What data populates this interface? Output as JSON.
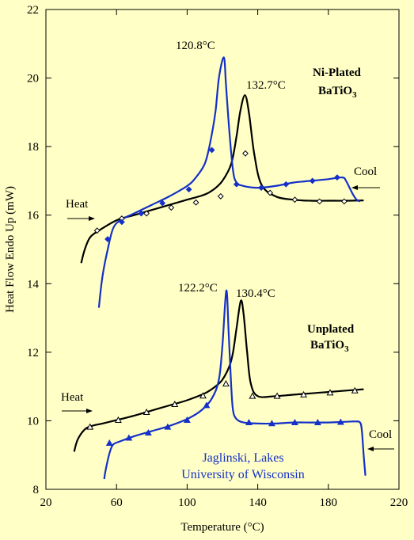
{
  "chart_data": {
    "type": "line",
    "xlabel": "Temperature (°C)",
    "ylabel": "Heat Flow Endo Up (mW)",
    "xlim": [
      20,
      220
    ],
    "ylim": [
      8,
      22
    ],
    "x_ticks": [
      20,
      60,
      100,
      140,
      180,
      220
    ],
    "y_ticks": [
      8,
      10,
      12,
      14,
      16,
      18,
      20,
      22
    ],
    "grid": false,
    "colors": {
      "heating": "#000000",
      "cooling": "#1530c8",
      "background": "#ffffc6"
    },
    "series": [
      {
        "panel": "Ni-Plated BaTiO3",
        "direction": "heat",
        "color": "#000000",
        "marker": "open-diamond",
        "x": [
          40,
          42,
          45,
          50,
          60,
          70,
          80,
          90,
          100,
          110,
          115,
          120,
          125,
          128,
          130,
          132.7,
          135,
          138,
          142,
          150,
          160,
          170,
          180,
          190,
          200
        ],
        "y": [
          14.6,
          15.0,
          15.35,
          15.55,
          15.85,
          16.0,
          16.15,
          16.3,
          16.45,
          16.6,
          16.75,
          17.0,
          17.5,
          18.3,
          19.0,
          19.5,
          19.0,
          17.8,
          16.9,
          16.55,
          16.45,
          16.42,
          16.42,
          16.42,
          16.43
        ],
        "markers_x": [
          49,
          63,
          77,
          91,
          105,
          119,
          133,
          147,
          161,
          175,
          189
        ],
        "markers_y": [
          15.55,
          15.9,
          16.05,
          16.22,
          16.37,
          16.55,
          17.8,
          16.65,
          16.45,
          16.4,
          16.4
        ]
      },
      {
        "panel": "Ni-Plated BaTiO3",
        "direction": "cool",
        "color": "#1530c8",
        "marker": "filled-diamond",
        "x": [
          50,
          52,
          55,
          58,
          62,
          70,
          80,
          90,
          100,
          105,
          110,
          113,
          116,
          118,
          120.8,
          122,
          124,
          126,
          128,
          132,
          140,
          150,
          160,
          170,
          180,
          188,
          190,
          192,
          194,
          196,
          198
        ],
        "y": [
          13.3,
          14.2,
          15.0,
          15.6,
          15.85,
          16.05,
          16.3,
          16.55,
          16.85,
          17.1,
          17.5,
          18.1,
          19.0,
          20.0,
          20.6,
          19.8,
          18.4,
          17.3,
          16.95,
          16.85,
          16.8,
          16.85,
          16.95,
          17.0,
          17.05,
          17.1,
          17.0,
          16.8,
          16.6,
          16.45,
          16.4
        ],
        "markers_x": [
          55,
          63,
          74,
          86,
          101,
          114,
          128,
          142,
          156,
          171,
          185
        ],
        "markers_y": [
          15.3,
          15.8,
          16.05,
          16.35,
          16.75,
          17.9,
          16.9,
          16.8,
          16.9,
          17.0,
          17.1
        ]
      },
      {
        "panel": "Unplated BaTiO3",
        "direction": "heat",
        "color": "#000000",
        "marker": "open-triangle",
        "x": [
          36,
          38,
          42,
          46,
          52,
          60,
          70,
          80,
          90,
          100,
          110,
          116,
          120,
          124,
          126,
          128,
          130.4,
          132,
          134,
          136,
          140,
          150,
          160,
          170,
          180,
          190,
          200
        ],
        "y": [
          9.1,
          9.45,
          9.75,
          9.85,
          9.92,
          10.02,
          10.15,
          10.3,
          10.45,
          10.6,
          10.8,
          11.0,
          11.2,
          11.6,
          12.0,
          12.7,
          13.5,
          13.1,
          12.0,
          11.1,
          10.72,
          10.72,
          10.76,
          10.8,
          10.84,
          10.88,
          10.92
        ],
        "markers_x": [
          45,
          61,
          77,
          93,
          109,
          122,
          137,
          151,
          166,
          181,
          195
        ],
        "markers_y": [
          9.82,
          10.02,
          10.25,
          10.48,
          10.73,
          11.08,
          10.72,
          10.72,
          10.76,
          10.82,
          10.88
        ]
      },
      {
        "panel": "Unplated BaTiO3",
        "direction": "cool",
        "color": "#1530c8",
        "marker": "filled-triangle",
        "x": [
          53,
          54,
          56,
          58,
          62,
          70,
          80,
          90,
          100,
          108,
          114,
          118,
          120,
          122.2,
          123.5,
          125,
          126,
          128,
          132,
          140,
          150,
          160,
          170,
          180,
          190,
          195,
          198,
          199,
          200,
          201
        ],
        "y": [
          8.3,
          8.6,
          9.05,
          9.3,
          9.4,
          9.55,
          9.7,
          9.85,
          10.05,
          10.3,
          10.65,
          11.2,
          12.2,
          13.8,
          12.6,
          11.0,
          10.3,
          10.05,
          9.95,
          9.92,
          9.92,
          9.95,
          9.95,
          9.95,
          9.97,
          9.98,
          9.95,
          9.7,
          9.0,
          8.4
        ],
        "markers_x": [
          56,
          67,
          78,
          89,
          100,
          111,
          135,
          148,
          161,
          174,
          187
        ],
        "markers_y": [
          9.35,
          9.5,
          9.65,
          9.82,
          10.02,
          10.45,
          9.95,
          9.92,
          9.95,
          9.95,
          9.96
        ]
      }
    ],
    "annotations": {
      "peak_ni_cool": "120.8°C",
      "peak_ni_heat": "132.7°C",
      "peak_un_cool": "122.2°C",
      "peak_un_heat": "130.4°C",
      "heat_top": "Heat",
      "cool_top": "Cool",
      "heat_bottom": "Heat",
      "cool_bottom": "Cool",
      "ni_line1": "Ni-Plated",
      "ni_line2_base": "BaTiO",
      "ni_line2_sub": "3",
      "un_line1": "Unplated",
      "un_line2_base": "BaTiO",
      "un_line2_sub": "3",
      "credit_line1": "Jaglinski, Lakes",
      "credit_line2": "University of Wisconsin"
    }
  }
}
